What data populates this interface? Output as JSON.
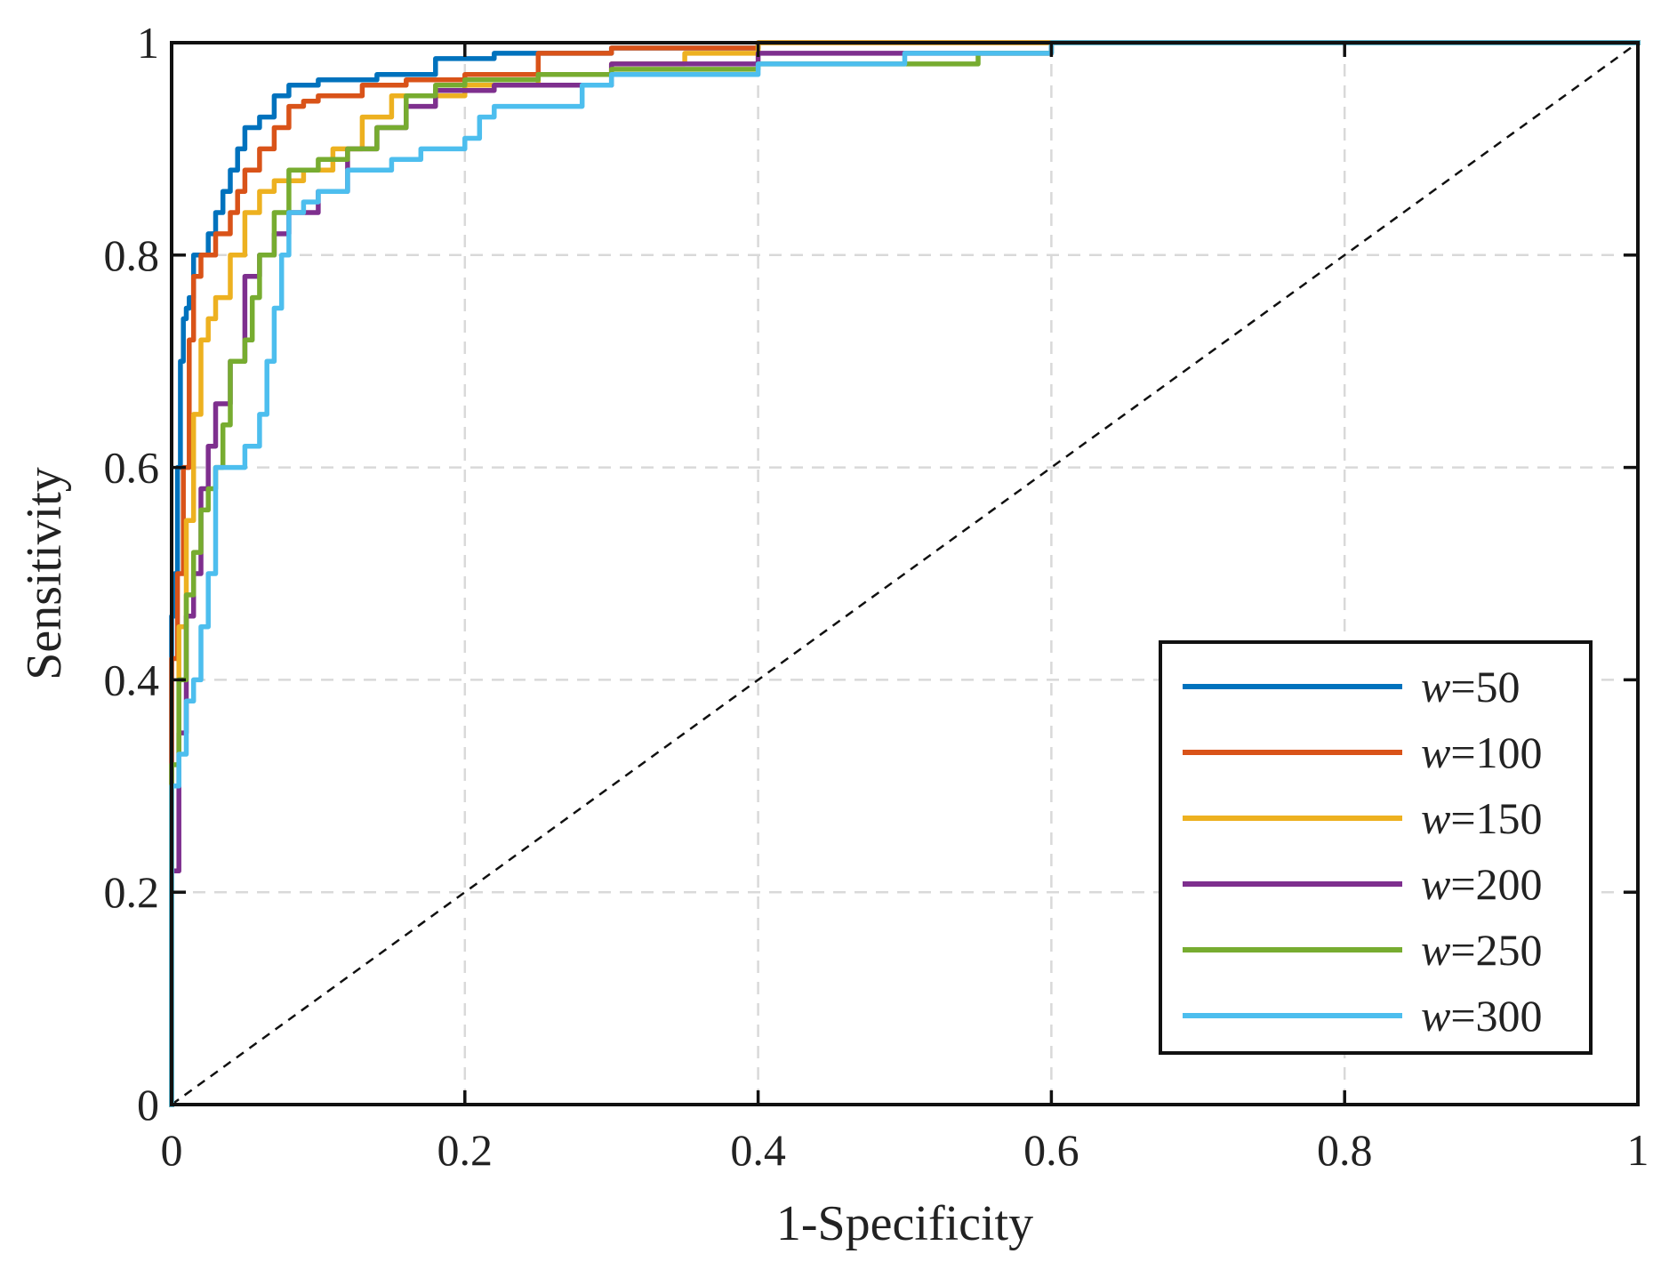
{
  "chart_data": {
    "type": "line",
    "title": "",
    "xlabel": "1-Specificity",
    "ylabel": "Sensitivity",
    "xlim": [
      0,
      1
    ],
    "ylim": [
      0,
      1
    ],
    "grid": true,
    "legend_position": "bottom-right",
    "xticks": [
      0,
      0.2,
      0.4,
      0.6,
      0.8,
      1
    ],
    "yticks": [
      0,
      0.2,
      0.4,
      0.6,
      0.8,
      1
    ],
    "xtick_labels": [
      "0",
      "0.2",
      "0.4",
      "0.6",
      "0.8",
      "1"
    ],
    "ytick_labels": [
      "0",
      "0.2",
      "0.4",
      "0.6",
      "0.8",
      "1"
    ],
    "reference_line": {
      "x": [
        0,
        1
      ],
      "y": [
        0,
        1
      ],
      "style": "dashed"
    },
    "series": [
      {
        "name": "w=50",
        "var": "w",
        "eq": "=",
        "value_label": "50",
        "color": "#0072BD",
        "x": [
          0,
          0,
          0.002,
          0.004,
          0.006,
          0.008,
          0.01,
          0.012,
          0.015,
          0.018,
          0.02,
          0.025,
          0.03,
          0.035,
          0.04,
          0.045,
          0.05,
          0.06,
          0.07,
          0.08,
          0.1,
          0.14,
          0.18,
          0.22,
          0.3,
          0.4,
          0.6,
          0.8,
          1
        ],
        "y": [
          0,
          0.46,
          0.5,
          0.6,
          0.7,
          0.74,
          0.75,
          0.76,
          0.8,
          0.8,
          0.8,
          0.82,
          0.84,
          0.86,
          0.88,
          0.9,
          0.92,
          0.93,
          0.95,
          0.96,
          0.965,
          0.97,
          0.985,
          0.99,
          0.995,
          1,
          1,
          1,
          1
        ]
      },
      {
        "name": "w=100",
        "var": "w",
        "eq": "=",
        "value_label": "100",
        "color": "#D95319",
        "x": [
          0,
          0,
          0.004,
          0.008,
          0.012,
          0.015,
          0.02,
          0.025,
          0.03,
          0.04,
          0.045,
          0.05,
          0.06,
          0.07,
          0.08,
          0.09,
          0.1,
          0.13,
          0.16,
          0.2,
          0.25,
          0.3,
          0.4,
          0.6,
          0.8,
          1
        ],
        "y": [
          0,
          0.42,
          0.5,
          0.6,
          0.72,
          0.78,
          0.8,
          0.8,
          0.82,
          0.84,
          0.86,
          0.88,
          0.9,
          0.92,
          0.94,
          0.945,
          0.95,
          0.96,
          0.965,
          0.97,
          0.99,
          0.995,
          1,
          1,
          1,
          1
        ]
      },
      {
        "name": "w=150",
        "var": "w",
        "eq": "=",
        "value_label": "150",
        "color": "#EDB120",
        "x": [
          0,
          0,
          0.005,
          0.01,
          0.015,
          0.02,
          0.025,
          0.03,
          0.04,
          0.05,
          0.06,
          0.07,
          0.09,
          0.11,
          0.13,
          0.15,
          0.2,
          0.25,
          0.3,
          0.35,
          0.4,
          0.6,
          0.8,
          1
        ],
        "y": [
          0,
          0.3,
          0.45,
          0.55,
          0.65,
          0.72,
          0.74,
          0.76,
          0.8,
          0.84,
          0.86,
          0.87,
          0.88,
          0.9,
          0.93,
          0.95,
          0.96,
          0.97,
          0.98,
          0.99,
          1,
          1,
          1,
          1
        ]
      },
      {
        "name": "w=200",
        "var": "w",
        "eq": "=",
        "value_label": "200",
        "color": "#7E2F8E",
        "x": [
          0,
          0,
          0.005,
          0.01,
          0.015,
          0.02,
          0.025,
          0.03,
          0.04,
          0.05,
          0.06,
          0.07,
          0.08,
          0.1,
          0.12,
          0.14,
          0.16,
          0.18,
          0.22,
          0.3,
          0.4,
          0.6,
          0.83,
          1
        ],
        "y": [
          0,
          0.22,
          0.35,
          0.46,
          0.5,
          0.58,
          0.62,
          0.66,
          0.7,
          0.78,
          0.8,
          0.82,
          0.84,
          0.86,
          0.9,
          0.92,
          0.94,
          0.955,
          0.96,
          0.98,
          0.99,
          1,
          1,
          1
        ]
      },
      {
        "name": "w=250",
        "var": "w",
        "eq": "=",
        "value_label": "250",
        "color": "#77AC30",
        "x": [
          0,
          0,
          0.005,
          0.01,
          0.015,
          0.02,
          0.025,
          0.03,
          0.035,
          0.04,
          0.05,
          0.055,
          0.06,
          0.07,
          0.08,
          0.1,
          0.12,
          0.14,
          0.16,
          0.18,
          0.2,
          0.25,
          0.3,
          0.4,
          0.55,
          0.6,
          0.8,
          1
        ],
        "y": [
          0,
          0.32,
          0.4,
          0.48,
          0.52,
          0.56,
          0.58,
          0.6,
          0.64,
          0.7,
          0.72,
          0.76,
          0.8,
          0.84,
          0.88,
          0.89,
          0.9,
          0.92,
          0.95,
          0.96,
          0.965,
          0.97,
          0.975,
          0.98,
          0.99,
          1,
          1,
          1
        ]
      },
      {
        "name": "w=300",
        "var": "w",
        "eq": "=",
        "value_label": "300",
        "color": "#4DBEEE",
        "x": [
          0,
          0,
          0.005,
          0.01,
          0.015,
          0.02,
          0.025,
          0.03,
          0.035,
          0.04,
          0.05,
          0.06,
          0.065,
          0.07,
          0.075,
          0.08,
          0.09,
          0.1,
          0.12,
          0.15,
          0.17,
          0.2,
          0.21,
          0.22,
          0.26,
          0.28,
          0.3,
          0.4,
          0.5,
          0.6,
          0.8,
          1
        ],
        "y": [
          0,
          0.3,
          0.33,
          0.38,
          0.4,
          0.45,
          0.5,
          0.6,
          0.6,
          0.6,
          0.62,
          0.65,
          0.7,
          0.75,
          0.8,
          0.84,
          0.85,
          0.86,
          0.88,
          0.89,
          0.9,
          0.91,
          0.93,
          0.94,
          0.94,
          0.96,
          0.97,
          0.98,
          0.99,
          1,
          1,
          1
        ]
      }
    ]
  }
}
